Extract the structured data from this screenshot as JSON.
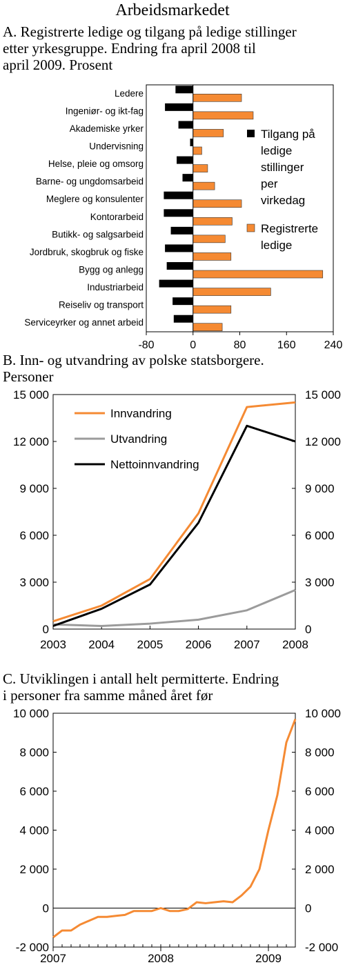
{
  "page_title": "Arbeidsmarkedet",
  "colors": {
    "orange": "#f58a33",
    "black": "#000000",
    "gray": "#9b9b9b"
  },
  "panels": {
    "a_title": "A.  Registrerte ledige og tilgang på ledige stillinger\n      etter yrkesgruppe.  Endring fra april 2008 til\n       april 2009. Prosent",
    "b_title": "B.  Inn- og utvandring av polske statsborgere.\n      Personer",
    "c_title": "C.  Utviklingen i antall helt permitterte. Endring\n      i personer fra samme måned året før"
  },
  "chart_data": [
    {
      "type": "bar",
      "orientation": "horizontal",
      "categories": [
        "Ledere",
        "Ingeniør- og ikt-fag",
        "Akademiske yrker",
        "Undervisning",
        "Helse, pleie og omsorg",
        "Barne- og ungdomsarbeid",
        "Meglere og konsulenter",
        "Kontorarbeid",
        "Butikk- og salgsarbeid",
        "Jordbruk, skogbruk og fiske",
        "Bygg og anlegg",
        "Industriarbeid",
        "Reiseliv og transport",
        "Serviceyrker og annet arbeid"
      ],
      "series": [
        {
          "name": "Tilgang på ledige stillinger per virkedag",
          "color": "#000000",
          "values": [
            -30,
            -48,
            -25,
            -5,
            -28,
            -18,
            -50,
            -50,
            -38,
            -48,
            -45,
            -58,
            -35,
            -33
          ]
        },
        {
          "name": "Registrerte ledige",
          "color": "#f58a33",
          "values": [
            83,
            103,
            52,
            15,
            25,
            37,
            83,
            67,
            55,
            65,
            222,
            133,
            65,
            50
          ]
        }
      ],
      "xlim": [
        -80,
        240
      ],
      "xticks": [
        "-80",
        "0",
        "80",
        "160",
        "240"
      ],
      "legend": [
        "Tilgang på",
        "ledige",
        "stillinger",
        "per",
        "virkedag",
        "Registrerte",
        "ledige"
      ],
      "legend_position": "right"
    },
    {
      "type": "line",
      "x": [
        2003,
        2004,
        2005,
        2006,
        2007,
        2008
      ],
      "xticks": [
        "2003",
        "2004",
        "2005",
        "2006",
        "2007",
        "2008"
      ],
      "ylim": [
        0,
        15000
      ],
      "yticks": [
        "0",
        "3 000",
        "6 000",
        "9 000",
        "12 000",
        "15 000"
      ],
      "series": [
        {
          "name": "Innvandring",
          "color": "#f58a33",
          "values": [
            500,
            1500,
            3200,
            7400,
            14200,
            14500
          ]
        },
        {
          "name": "Utvandring",
          "color": "#9b9b9b",
          "values": [
            300,
            200,
            350,
            600,
            1200,
            2500
          ]
        },
        {
          "name": "Nettoinnvandring",
          "color": "#000000",
          "values": [
            200,
            1300,
            2850,
            6800,
            13000,
            12000
          ]
        }
      ],
      "legend_position": "top-left"
    },
    {
      "type": "line",
      "x": [
        "2007-01",
        "2007-02",
        "2007-03",
        "2007-04",
        "2007-05",
        "2007-06",
        "2007-07",
        "2007-08",
        "2007-09",
        "2007-10",
        "2007-11",
        "2007-12",
        "2008-01",
        "2008-02",
        "2008-03",
        "2008-04",
        "2008-05",
        "2008-06",
        "2008-07",
        "2008-08",
        "2008-09",
        "2008-10",
        "2008-11",
        "2008-12",
        "2009-01",
        "2009-02",
        "2009-03",
        "2009-04"
      ],
      "xticks": [
        "2007",
        "2008",
        "2009"
      ],
      "ylim": [
        -2000,
        10000
      ],
      "yticks": [
        "-2 000",
        "0",
        "2 000",
        "4 000",
        "6 000",
        "8 000",
        "10 000"
      ],
      "series": [
        {
          "name": "",
          "color": "#f58a33",
          "values": [
            -1500,
            -1150,
            -1150,
            -850,
            -650,
            -450,
            -450,
            -400,
            -350,
            -150,
            -150,
            -150,
            0,
            -150,
            -150,
            -50,
            300,
            250,
            300,
            350,
            300,
            650,
            1100,
            2000,
            4000,
            5800,
            8500,
            9700
          ]
        }
      ]
    }
  ]
}
